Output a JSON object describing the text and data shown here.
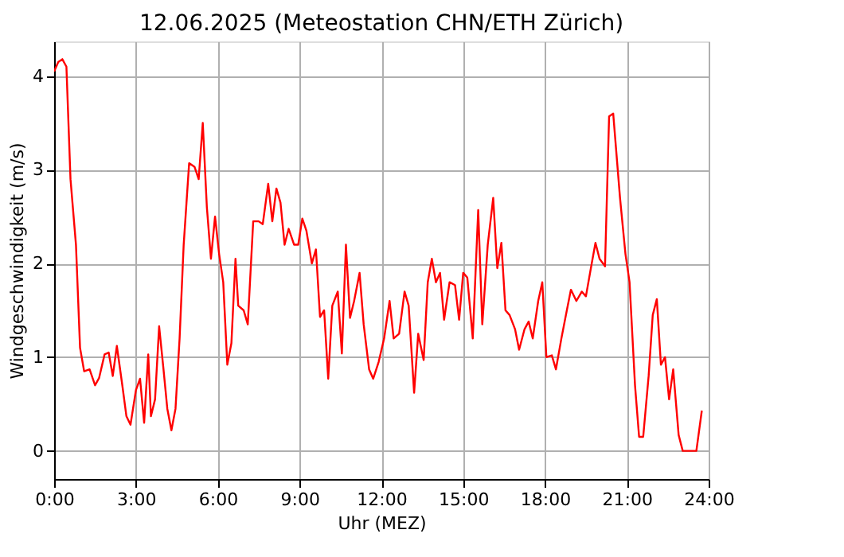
{
  "chart_data": {
    "type": "line",
    "title": "12.06.2025  (Meteostation CHN/ETH Zürich)",
    "xlabel": "Uhr (MEZ)",
    "ylabel": "Windgeschwindigkeit (m/s)",
    "x": [
      0.0,
      0.15,
      0.3,
      0.45,
      0.6,
      0.8,
      0.95,
      1.1,
      1.3,
      1.5,
      1.65,
      1.85,
      2.0,
      2.15,
      2.3,
      2.5,
      2.65,
      2.8,
      3.0,
      3.15,
      3.3,
      3.45,
      3.55,
      3.7,
      3.85,
      4.0,
      4.15,
      4.3,
      4.45,
      4.6,
      4.75,
      4.95,
      5.15,
      5.3,
      5.45,
      5.6,
      5.75,
      5.9,
      6.05,
      6.2,
      6.35,
      6.5,
      6.65,
      6.75,
      6.95,
      7.1,
      7.3,
      7.5,
      7.65,
      7.85,
      8.0,
      8.15,
      8.3,
      8.45,
      8.6,
      8.8,
      8.95,
      9.1,
      9.25,
      9.45,
      9.6,
      9.75,
      9.9,
      10.05,
      10.2,
      10.4,
      10.55,
      10.7,
      10.85,
      11.0,
      11.2,
      11.35,
      11.55,
      11.7,
      11.9,
      12.1,
      12.3,
      12.45,
      12.65,
      12.85,
      13.0,
      13.2,
      13.35,
      13.55,
      13.7,
      13.85,
      14.0,
      14.15,
      14.3,
      14.5,
      14.7,
      14.85,
      15.0,
      15.15,
      15.35,
      15.55,
      15.7,
      15.9,
      16.1,
      16.25,
      16.4,
      16.55,
      16.7,
      16.9,
      17.05,
      17.25,
      17.4,
      17.55,
      17.75,
      17.9,
      18.05,
      18.25,
      18.4,
      18.6,
      18.8,
      18.95,
      19.15,
      19.35,
      19.5,
      19.7,
      19.85,
      20.0,
      20.2,
      20.35,
      20.5,
      20.75,
      20.95,
      21.1,
      21.3,
      21.45,
      21.6,
      21.8,
      21.95,
      22.1,
      22.25,
      22.4,
      22.55,
      22.7,
      22.9,
      23.05,
      23.35,
      23.55,
      23.75
    ],
    "series": [
      {
        "color": "#ff0000",
        "values": [
          4.05,
          4.15,
          4.18,
          4.1,
          2.9,
          2.2,
          1.1,
          0.85,
          0.87,
          0.7,
          0.78,
          1.03,
          1.05,
          0.8,
          1.12,
          0.7,
          0.37,
          0.28,
          0.65,
          0.77,
          0.3,
          1.03,
          0.37,
          0.55,
          1.33,
          0.9,
          0.45,
          0.22,
          0.45,
          1.2,
          2.2,
          3.07,
          3.03,
          2.9,
          3.5,
          2.6,
          2.05,
          2.5,
          2.1,
          1.8,
          0.92,
          1.15,
          2.05,
          1.55,
          1.5,
          1.35,
          2.45,
          2.45,
          2.42,
          2.85,
          2.45,
          2.8,
          2.65,
          2.2,
          2.37,
          2.2,
          2.2,
          2.48,
          2.35,
          2.0,
          2.15,
          1.43,
          1.5,
          0.77,
          1.55,
          1.7,
          1.04,
          2.2,
          1.42,
          1.6,
          1.9,
          1.35,
          0.87,
          0.77,
          0.95,
          1.2,
          1.6,
          1.2,
          1.25,
          1.7,
          1.55,
          0.62,
          1.25,
          0.97,
          1.8,
          2.05,
          1.8,
          1.9,
          1.4,
          1.8,
          1.77,
          1.4,
          1.9,
          1.85,
          1.2,
          2.57,
          1.35,
          2.2,
          2.7,
          1.95,
          2.22,
          1.5,
          1.45,
          1.3,
          1.08,
          1.3,
          1.38,
          1.2,
          1.6,
          1.8,
          1.0,
          1.02,
          0.87,
          1.2,
          1.5,
          1.72,
          1.6,
          1.7,
          1.65,
          1.98,
          2.22,
          2.05,
          1.97,
          3.57,
          3.6,
          2.7,
          2.1,
          1.8,
          0.7,
          0.15,
          0.15,
          0.8,
          1.45,
          1.62,
          0.92,
          1.0,
          0.55,
          0.87,
          0.17,
          0.0,
          0.0,
          0.0,
          0.43
        ]
      }
    ],
    "xlim": [
      0,
      24
    ],
    "xticks": [
      {
        "value": 0,
        "label": "0:00"
      },
      {
        "value": 3,
        "label": "3:00"
      },
      {
        "value": 6,
        "label": "6:00"
      },
      {
        "value": 9,
        "label": "9:00"
      },
      {
        "value": 12,
        "label": "12:00"
      },
      {
        "value": 15,
        "label": "15:00"
      },
      {
        "value": 18,
        "label": "18:00"
      },
      {
        "value": 21,
        "label": "21:00"
      },
      {
        "value": 24,
        "label": "24:00"
      }
    ],
    "ylim": [
      -0.3,
      4.37
    ],
    "yticks": [
      0,
      1,
      2,
      3,
      4
    ],
    "grid": true,
    "line_style": "solid"
  }
}
